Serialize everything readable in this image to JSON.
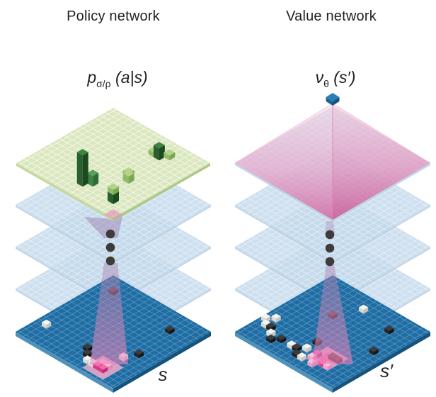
{
  "policy": {
    "title": "Policy network",
    "formula": {
      "base": "p",
      "sub": "σ/ρ",
      "args": " (a|s)"
    },
    "state_label": "s",
    "bars": [
      {
        "u": 12,
        "v": 4,
        "h": 7,
        "color": "light"
      },
      {
        "u": 13,
        "v": 4,
        "h": 17,
        "color": "dark"
      },
      {
        "u": 14,
        "v": 3,
        "h": 7,
        "color": "light"
      },
      {
        "u": 13,
        "v": 10,
        "h": 6,
        "color": "light"
      },
      {
        "u": 14,
        "v": 11,
        "h": 10,
        "color": "light"
      },
      {
        "u": 11,
        "v": 15,
        "h": 15,
        "color": "mid"
      },
      {
        "u": 10,
        "v": 16,
        "h": 44,
        "color": "dark"
      },
      {
        "u": 16,
        "v": 16,
        "h": 13,
        "color": "dark"
      },
      {
        "u": 16,
        "v": 16,
        "h": 7,
        "z": 13,
        "color": "light"
      }
    ],
    "stones": [
      {
        "u": 3,
        "v": 3,
        "type": "maroon"
      },
      {
        "u": 15,
        "v": 4,
        "type": "black"
      },
      {
        "u": 2,
        "v": 15,
        "type": "white"
      },
      {
        "u": 10,
        "v": 15,
        "type": "black"
      },
      {
        "u": 16,
        "v": 11,
        "type": "black"
      },
      {
        "u": 11,
        "v": 16,
        "type": "black"
      },
      {
        "u": 15,
        "v": 13,
        "type": "white"
      },
      {
        "u": 14,
        "v": 16,
        "type": "pink"
      },
      {
        "u": 15,
        "v": 16,
        "type": "pink"
      },
      {
        "u": 12,
        "v": 17,
        "type": "white"
      },
      {
        "u": 13,
        "v": 17,
        "type": "white"
      },
      {
        "u": 14,
        "v": 17,
        "type": "magenta"
      },
      {
        "u": 15,
        "v": 17,
        "type": "magenta"
      }
    ]
  },
  "value": {
    "title": "Value network",
    "formula": {
      "base": "ν",
      "sub": "θ",
      "args": " (s′)"
    },
    "state_label": "s′",
    "stones": [
      {
        "u": 9,
        "v": 3,
        "type": "white"
      },
      {
        "u": 7,
        "v": 7,
        "type": "maroon"
      },
      {
        "u": 15,
        "v": 4,
        "type": "black"
      },
      {
        "u": 17,
        "v": 9,
        "type": "black"
      },
      {
        "u": 10,
        "v": 13,
        "type": "black"
      },
      {
        "u": 2,
        "v": 13,
        "type": "white"
      },
      {
        "u": 1,
        "v": 14,
        "type": "white"
      },
      {
        "u": 2,
        "v": 15,
        "type": "white"
      },
      {
        "u": 3,
        "v": 15,
        "type": "black"
      },
      {
        "u": 4,
        "v": 16,
        "type": "white"
      },
      {
        "u": 6,
        "v": 16,
        "type": "black"
      },
      {
        "u": 5,
        "v": 17,
        "type": "black"
      },
      {
        "u": 8,
        "v": 16,
        "type": "white"
      },
      {
        "u": 9,
        "v": 16,
        "type": "black"
      },
      {
        "u": 10,
        "v": 15,
        "type": "white"
      },
      {
        "u": 10,
        "v": 17,
        "type": "black"
      },
      {
        "u": 11,
        "v": 17,
        "type": "white"
      },
      {
        "u": 12,
        "v": 15,
        "type": "magenta"
      },
      {
        "u": 12,
        "v": 16,
        "type": "pink"
      },
      {
        "u": 14,
        "v": 14,
        "type": "maroon"
      },
      {
        "u": 15,
        "v": 14,
        "type": "maroon"
      },
      {
        "u": 13,
        "v": 17,
        "type": "pink"
      },
      {
        "u": 14,
        "v": 16,
        "type": "magenta"
      },
      {
        "u": 15,
        "v": 16,
        "type": "pink"
      }
    ]
  },
  "colors": {
    "plane_green": "#dbe7bf",
    "layer_blue": "#c3d9ec",
    "board_blue": "#1e6da4",
    "beam_pink": "#e06aa8",
    "pyramid_pink": "#e58bb8",
    "dot_gray": "#3f3b3a",
    "bars": {
      "dark": {
        "t": "#3e8343",
        "l": "#2a5f2f",
        "r": "#1b4a21"
      },
      "mid": {
        "t": "#58a15d",
        "l": "#3f8445",
        "r": "#2f6b35"
      },
      "light": {
        "t": "#b4d38a",
        "l": "#93ba69",
        "r": "#7ba654"
      }
    },
    "stones": {
      "black": {
        "t": "#3c3c3c",
        "l": "#242424",
        "r": "#151515"
      },
      "white": {
        "t": "#f4f4f0",
        "l": "#dcdcd6",
        "r": "#c6c6c0"
      },
      "maroon": {
        "t": "#6a4452",
        "l": "#50303e",
        "r": "#3c2230"
      },
      "magenta": {
        "t": "#f468ae",
        "l": "#d63a8c",
        "r": "#ba2a78"
      },
      "pink": {
        "t": "#f9c2da",
        "l": "#efa0c6",
        "r": "#e289b6"
      }
    }
  }
}
